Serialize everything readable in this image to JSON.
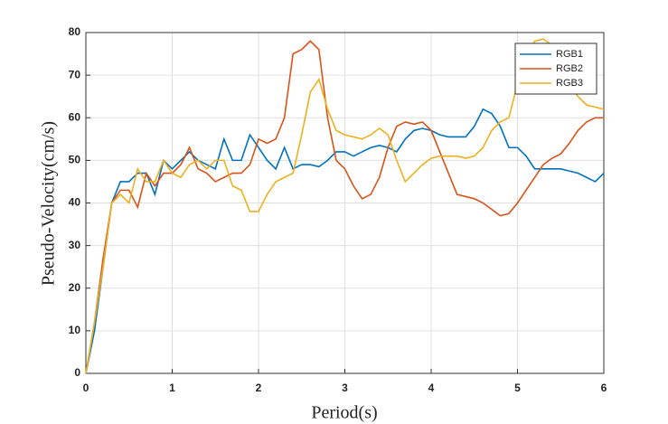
{
  "chart_data": {
    "type": "line",
    "xlabel": "Period(s)",
    "ylabel": "Pseudo-Velocity(cm/s)",
    "x": [
      0,
      0.1,
      0.2,
      0.3,
      0.4,
      0.5,
      0.6,
      0.7,
      0.8,
      0.9,
      1,
      1.1,
      1.2,
      1.3,
      1.4,
      1.5,
      1.6,
      1.7,
      1.8,
      1.9,
      2,
      2.1,
      2.2,
      2.3,
      2.4,
      2.5,
      2.6,
      2.7,
      2.8,
      2.9,
      3,
      3.1,
      3.2,
      3.3,
      3.4,
      3.5,
      3.6,
      3.7,
      3.8,
      3.9,
      4,
      4.1,
      4.2,
      4.3,
      4.4,
      4.5,
      4.6,
      4.7,
      4.8,
      4.9,
      5,
      5.1,
      5.2,
      5.3,
      5.4,
      5.5,
      5.6,
      5.7,
      5.8,
      5.9,
      6
    ],
    "series": [
      {
        "name": "RGB1",
        "color": "#0072bd",
        "values": [
          0,
          10,
          25,
          40,
          45,
          45,
          47,
          47,
          42,
          50,
          48,
          50,
          52,
          50,
          49,
          48,
          55,
          50,
          50,
          56,
          53,
          50,
          48,
          53,
          48,
          49,
          49,
          48.5,
          50,
          52,
          52,
          51,
          52,
          53,
          53.5,
          53,
          52,
          55,
          57,
          57.5,
          57,
          56,
          55.5,
          55.5,
          55.5,
          58,
          62,
          61,
          58,
          53,
          53,
          51,
          48,
          48,
          48,
          48,
          47.5,
          47,
          46,
          45,
          47
        ]
      },
      {
        "name": "RGB2",
        "color": "#d95319",
        "values": [
          0,
          12,
          27,
          40,
          43,
          43,
          39,
          47,
          44,
          47,
          47,
          49,
          53,
          48,
          47,
          45,
          46,
          47,
          47,
          49,
          55,
          54,
          55,
          60,
          75,
          76,
          78,
          76,
          60,
          50,
          48,
          44,
          41,
          42,
          46,
          53,
          58,
          59,
          58.5,
          59,
          57,
          52,
          47,
          42,
          41.5,
          41,
          40,
          38.5,
          37,
          37.5,
          40,
          43,
          46,
          49,
          50.5,
          51.5,
          54,
          57,
          59,
          60,
          60
        ]
      },
      {
        "name": "RGB3",
        "color": "#edb120",
        "values": [
          0,
          12,
          25,
          40,
          42,
          40,
          48,
          45,
          45,
          50,
          47,
          46,
          49,
          50,
          48,
          50,
          50,
          44,
          43,
          38,
          38,
          42,
          45,
          46,
          47,
          56,
          66,
          69,
          62,
          57,
          56,
          55.5,
          55,
          56,
          57.5,
          56,
          50,
          45,
          47,
          49,
          50.5,
          51,
          51,
          51,
          50.5,
          51,
          53,
          57,
          59,
          60,
          68,
          74,
          78,
          78.5,
          77,
          72,
          68,
          65,
          63,
          62.5,
          62
        ]
      }
    ],
    "xlim": [
      0,
      6
    ],
    "xticks": [
      0,
      1,
      2,
      3,
      4,
      5,
      6
    ],
    "ylim": [
      0,
      80
    ],
    "yticks": [
      0,
      10,
      20,
      30,
      40,
      50,
      60,
      70,
      80
    ],
    "grid": true,
    "legend": "upper right"
  }
}
